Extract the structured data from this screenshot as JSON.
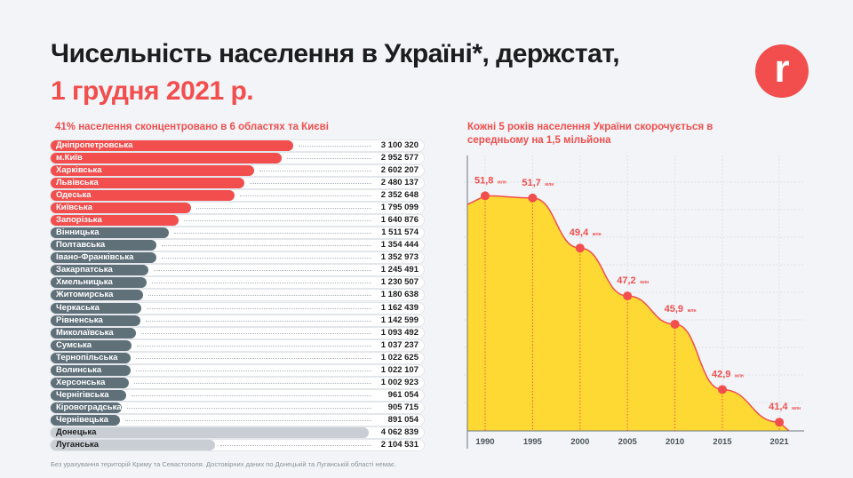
{
  "header": {
    "title_line1": "Чисельність населення в Україні*, держстат,",
    "title_line2": "1 грудня 2021 р.",
    "logo_letter": "r"
  },
  "footnote": "Без урахування територій Криму та Севастополя. Достовірних даних по Донецькій та Луганській області немає.",
  "colors": {
    "accent": "#f24e4e",
    "dark_bar": "#5f7079",
    "light_bar": "#c8ced3",
    "area": "#ffd933"
  },
  "chart_data": [
    {
      "type": "bar",
      "orientation": "horizontal",
      "title": "41% населення сконцентровано в 6 областях та Києві",
      "categories": [
        "Дніпропетровська",
        "м.Київ",
        "Харківська",
        "Львівська",
        "Одеська",
        "Київська",
        "Запорізька",
        "Вінницька",
        "Полтавська",
        "Івано-Франківська",
        "Закарпатська",
        "Хмельницька",
        "Житомирська",
        "Черкаська",
        "Рівненська",
        "Миколаївська",
        "Сумська",
        "Тернопільська",
        "Волинська",
        "Херсонська",
        "Чернігівська",
        "Кіровоградська",
        "Чернівецька",
        "Донецька",
        "Луганська"
      ],
      "values": [
        3100320,
        2952577,
        2602207,
        2480137,
        2352648,
        1795099,
        1640876,
        1511574,
        1354444,
        1352973,
        1245491,
        1230507,
        1180638,
        1162439,
        1142599,
        1093492,
        1037237,
        1022625,
        1022107,
        1002923,
        961054,
        905715,
        891054,
        4062839,
        2104531
      ],
      "labels": [
        "3 100 320",
        "2 952 577",
        "2 602 207",
        "2 480 137",
        "2 352 648",
        "1 795 099",
        "1 640 876",
        "1 511 574",
        "1 354 444",
        "1 352 973",
        "1 245 491",
        "1 230 507",
        "1 180 638",
        "1 162 439",
        "1 142 599",
        "1 093 492",
        "1 037 237",
        "1 022 625",
        "1 022 107",
        "1 002 923",
        "961 054",
        "905 715",
        "891 054",
        "4 062 839",
        "2 104 531"
      ],
      "groups": [
        "top",
        "top",
        "top",
        "top",
        "top",
        "top",
        "top",
        "other",
        "other",
        "other",
        "other",
        "other",
        "other",
        "other",
        "other",
        "other",
        "other",
        "other",
        "other",
        "other",
        "other",
        "other",
        "other",
        "no-data",
        "no-data"
      ]
    },
    {
      "type": "area",
      "title": "Кожні 5 років населення України скорочується в середньому на 1,5 мільйона",
      "x": [
        1990,
        1995,
        2000,
        2005,
        2010,
        2015,
        2021
      ],
      "values": [
        51.8,
        51.7,
        49.4,
        47.2,
        45.9,
        42.9,
        41.4
      ],
      "labels": [
        "51,8",
        "51,7",
        "49,4",
        "47,2",
        "45,9",
        "42,9",
        "41,4"
      ],
      "unit": "млн",
      "grid": true
    }
  ]
}
